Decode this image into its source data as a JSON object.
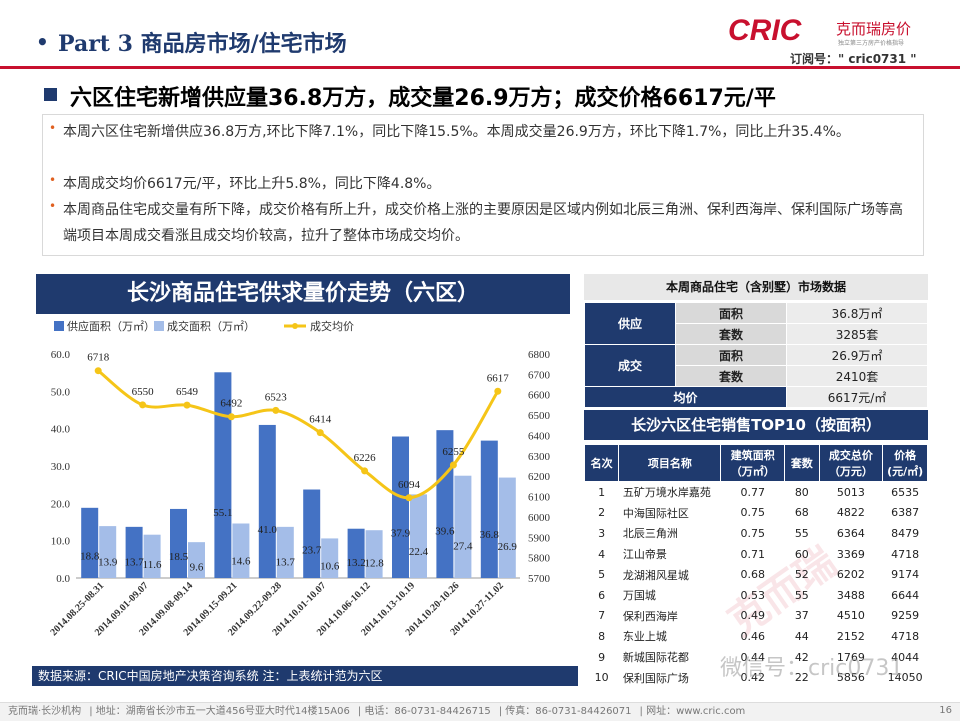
{
  "header": {
    "bullet": "•",
    "title": "Part 3 商品房市场/住宅市场",
    "brand_logo": "CRIC",
    "brand_name": "克而瑞房价",
    "brand_tagline": "独立第三方房产价格指导",
    "subscribe": "订阅号：\" cric0731 \""
  },
  "headline": "六区住宅新增供应量36.8万方，成交量26.9万方；成交价格6617元/平",
  "points": [
    "本周六区住宅新增供应36.8万方,环比下降7.1%，同比下降15.5%。本周成交量26.9万方，环比下降1.7%，同比上升35.4%。",
    "本周成交均价6617元/平，环比上升5.8%，同比下降4.8%。",
    "本周商品住宅成交量有所下降，成交价格有所上升，成交价格上涨的主要原因是区域内例如北辰三角洲、保利西海岸、保利国际广场等高端项目本周成交看涨且成交均价较高，拉升了整体市场成交均价。"
  ],
  "chart_data": {
    "type": "bar",
    "title": "长沙商品住宅供求量价走势（六区）",
    "categories": [
      "2014.08.25-08.31",
      "2014.09.01-09.07",
      "2014.09.08-09.14",
      "2014.09.15-09.21",
      "2014.09.22-09.28",
      "2014.10.01-10.07",
      "2014.10.06-10.12",
      "2014.10.13-10.19",
      "2014.10.20-10.26",
      "2014.10.27-11.02"
    ],
    "series": [
      {
        "name": "供应面积（万㎡）",
        "type": "bar",
        "axis": "left",
        "color": "#4472c4",
        "values": [
          18.8,
          13.7,
          18.5,
          55.1,
          41.0,
          23.7,
          13.2,
          37.9,
          39.6,
          36.8
        ]
      },
      {
        "name": "成交面积（万㎡）",
        "type": "bar",
        "axis": "left",
        "color": "#a4bde8",
        "values": [
          13.9,
          11.6,
          9.6,
          14.6,
          13.7,
          10.6,
          12.8,
          22.4,
          27.4,
          26.9
        ]
      },
      {
        "name": "成交均价",
        "type": "line",
        "axis": "right",
        "color": "#f5c518",
        "values": [
          6718,
          6550,
          6549,
          6492,
          6523,
          6414,
          6226,
          6094,
          6255,
          6617
        ]
      }
    ],
    "ylim_left": [
      0,
      60
    ],
    "yticks_left": [
      "0.0",
      "10.0",
      "20.0",
      "30.0",
      "40.0",
      "50.0",
      "60.0"
    ],
    "ylim_right": [
      5700,
      6800
    ],
    "yticks_right": [
      "5700",
      "5800",
      "5900",
      "6000",
      "6100",
      "6200",
      "6300",
      "6400",
      "6500",
      "6600",
      "6700",
      "6800"
    ],
    "legend": "top-left"
  },
  "source_note": "数据来源：CRIC中国房地产决策咨询系统   注：上表统计范为六区",
  "market_table": {
    "title": "本周商品住宅（含别墅）市场数据",
    "supply_label": "供应",
    "deal_label": "成交",
    "avg_label": "均价",
    "rows": [
      {
        "k": "面积",
        "v": "36.8万㎡"
      },
      {
        "k": "套数",
        "v": "3285套"
      },
      {
        "k": "面积",
        "v": "26.9万㎡"
      },
      {
        "k": "套数",
        "v": "2410套"
      }
    ],
    "avg_value": "6617元/㎡"
  },
  "top10": {
    "title": "长沙六区住宅销售TOP10（按面积）",
    "headers": [
      "名次",
      "项目名称",
      "建筑面积（万㎡）",
      "套数",
      "成交总价（万元）",
      "价格(元/㎡)"
    ],
    "rows": [
      [
        "1",
        "五矿万境水岸嘉苑",
        "0.77",
        "80",
        "5013",
        "6535"
      ],
      [
        "2",
        "中海国际社区",
        "0.75",
        "68",
        "4822",
        "6387"
      ],
      [
        "3",
        "北辰三角洲",
        "0.75",
        "55",
        "6364",
        "8479"
      ],
      [
        "4",
        "江山帝景",
        "0.71",
        "60",
        "3369",
        "4718"
      ],
      [
        "5",
        "龙湖湘风星城",
        "0.68",
        "52",
        "6202",
        "9174"
      ],
      [
        "6",
        "万国城",
        "0.53",
        "55",
        "3488",
        "6644"
      ],
      [
        "7",
        "保利西海岸",
        "0.49",
        "37",
        "4510",
        "9259"
      ],
      [
        "8",
        "东业上城",
        "0.46",
        "44",
        "2152",
        "4718"
      ],
      [
        "9",
        "新城国际花都",
        "0.44",
        "42",
        "1769",
        "4044"
      ],
      [
        "10",
        "保利国际广场",
        "0.42",
        "22",
        "5856",
        "14050"
      ]
    ]
  },
  "watermark": "微信号：cric0731",
  "footer": {
    "items": [
      "克而瑞·长沙机构",
      "地址：湖南省长沙市五一大道456号亚大时代14楼15A06",
      "电话：86-0731-84426715",
      "传真：86-0731-84426071",
      "网址：www.cric.com"
    ],
    "page": "16"
  }
}
